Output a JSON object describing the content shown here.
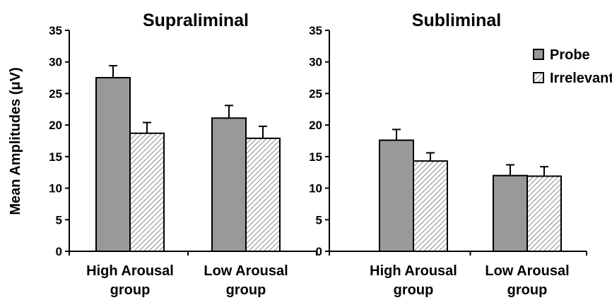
{
  "chart_data": [
    {
      "type": "bar",
      "title": "Supraliminal",
      "ylabel": "Mean Amplitudes (μV)",
      "xlabel": "",
      "ylim": [
        0,
        35
      ],
      "yticks": [
        "0",
        "5",
        "10",
        "15",
        "20",
        "25",
        "30",
        "35"
      ],
      "categories": [
        [
          "High Arousal",
          "group"
        ],
        [
          "Low Arousal",
          "group"
        ]
      ],
      "series": [
        {
          "name": "Probe",
          "values": [
            27.5,
            21.1
          ],
          "errors": [
            1.9,
            2.0
          ]
        },
        {
          "name": "Irrelevant",
          "values": [
            18.7,
            17.9
          ],
          "errors": [
            1.7,
            1.9
          ]
        }
      ],
      "legend": "none",
      "grid": false
    },
    {
      "type": "bar",
      "title": "Subliminal",
      "ylabel": "",
      "xlabel": "",
      "ylim": [
        0,
        35
      ],
      "yticks": [
        "0",
        "5",
        "10",
        "15",
        "20",
        "25",
        "30",
        "35"
      ],
      "categories": [
        [
          "High Arousal",
          "group"
        ],
        [
          "Low Arousal",
          "group"
        ]
      ],
      "series": [
        {
          "name": "Probe",
          "values": [
            17.6,
            12.0
          ],
          "errors": [
            1.7,
            1.7
          ]
        },
        {
          "name": "Irrelevant",
          "values": [
            14.3,
            11.9
          ],
          "errors": [
            1.3,
            1.5
          ]
        }
      ],
      "legend": "top-right",
      "grid": false
    }
  ],
  "colors": {
    "probe_fill": "#999999",
    "irrelevant_fill": "#ffffff",
    "irrelevant_hatch": "#8a8a8a",
    "stroke": "#000000"
  }
}
